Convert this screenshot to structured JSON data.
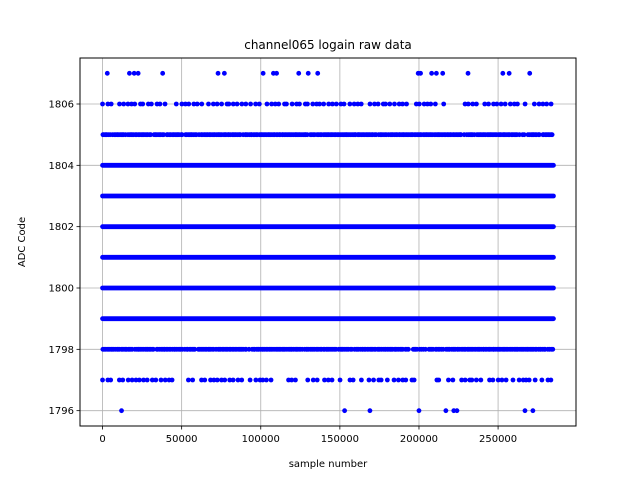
{
  "chart_data": {
    "type": "scatter",
    "title": "channel065 logain raw data",
    "xlabel": "sample number",
    "ylabel": "ADC Code",
    "xlim": [
      -14250,
      299250
    ],
    "ylim": [
      1795.5,
      1807.5
    ],
    "xticks": [
      0,
      50000,
      100000,
      150000,
      200000,
      250000
    ],
    "xtick_labels": [
      "0",
      "50000",
      "100000",
      "150000",
      "200000",
      "250000"
    ],
    "yticks": [
      1796,
      1798,
      1800,
      1802,
      1804,
      1806
    ],
    "ytick_labels": [
      "1796",
      "1798",
      "1800",
      "1802",
      "1804",
      "1806"
    ],
    "grid": true,
    "marker_color": "#0000ff",
    "series": [
      {
        "name": "",
        "bands": [
          {
            "y": 1807,
            "x": [
              3000,
              17000,
              20000,
              22500,
              38000,
              73000,
              77000,
              101500,
              108000,
              110000,
              124000,
              130000,
              136000,
              199500,
              201000,
              208000,
              211000,
              215000,
              231000,
              253000,
              257000,
              270000
            ]
          },
          {
            "y": 1806,
            "x_range": [
              0,
              283500
            ],
            "density": "sparse"
          },
          {
            "y": 1805,
            "x_range": [
              0,
              285000
            ],
            "density": "dense"
          },
          {
            "y": 1804,
            "x_range": [
              0,
              285000
            ],
            "density": "solid"
          },
          {
            "y": 1803,
            "x_range": [
              0,
              285000
            ],
            "density": "solid"
          },
          {
            "y": 1802,
            "x_range": [
              0,
              285000
            ],
            "density": "solid"
          },
          {
            "y": 1801,
            "x_range": [
              0,
              285000
            ],
            "density": "solid"
          },
          {
            "y": 1800,
            "x_range": [
              0,
              285000
            ],
            "density": "solid"
          },
          {
            "y": 1799,
            "x_range": [
              0,
              285000
            ],
            "density": "solid"
          },
          {
            "y": 1798,
            "x_range": [
              0,
              285000
            ],
            "density": "dense"
          },
          {
            "y": 1797,
            "x_range": [
              0,
              283500
            ],
            "density": "sparse"
          },
          {
            "y": 1796,
            "x": [
              12000,
              153000,
              169000,
              200000,
              217000,
              222000,
              224000,
              267000,
              272000
            ]
          }
        ]
      }
    ]
  }
}
